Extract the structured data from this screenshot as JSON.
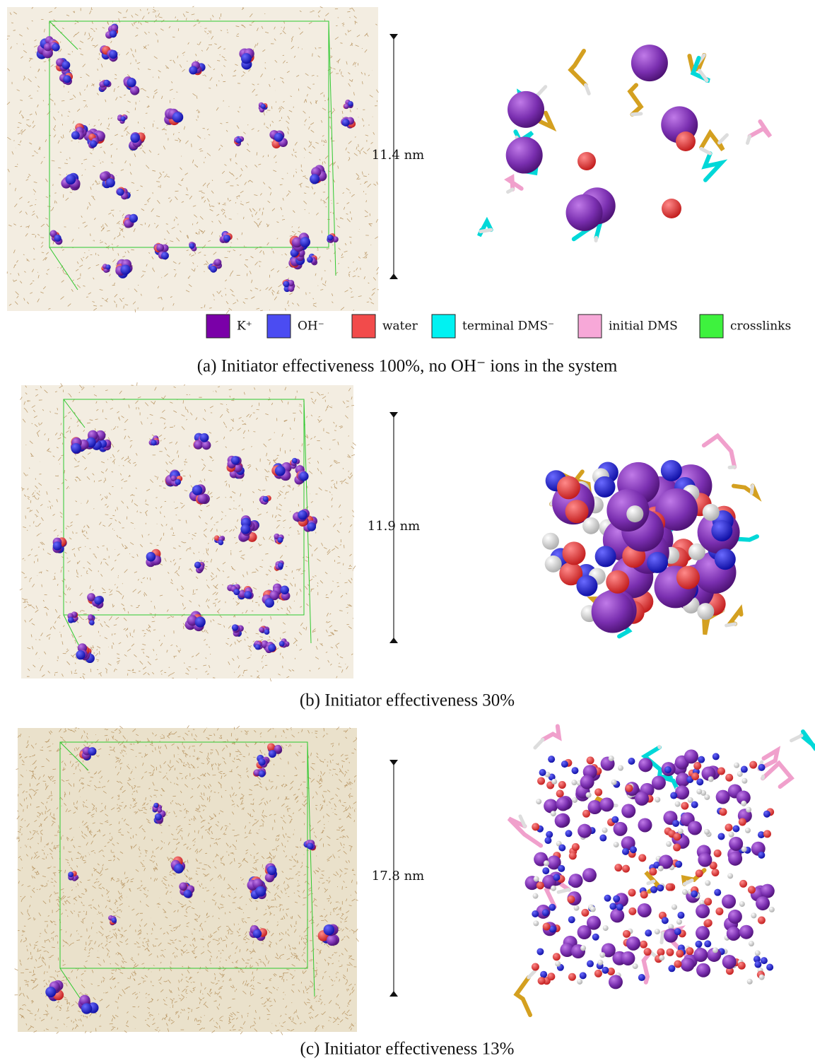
{
  "panels": [
    {
      "scale_label": "11.4 nm",
      "caption": "(a) Initiator effectiveness 100%, no OH⁻ ions in the system"
    },
    {
      "scale_label": "11.9 nm",
      "caption": "(b) Initiator effectiveness 30%"
    },
    {
      "scale_label": "17.8 nm",
      "caption": "(c) Initiator effectiveness 13%"
    }
  ],
  "legend": [
    {
      "label": "K⁺",
      "color": "#7a00a8"
    },
    {
      "label": "OH⁻",
      "color": "#4b4cf2"
    },
    {
      "label": "water",
      "color": "#f24b4b"
    },
    {
      "label": "terminal DMS⁻",
      "color": "#00f2f2"
    },
    {
      "label": "initial DMS",
      "color": "#f7a8d8"
    },
    {
      "label": "crosslinks",
      "color": "#3ef23e"
    }
  ]
}
